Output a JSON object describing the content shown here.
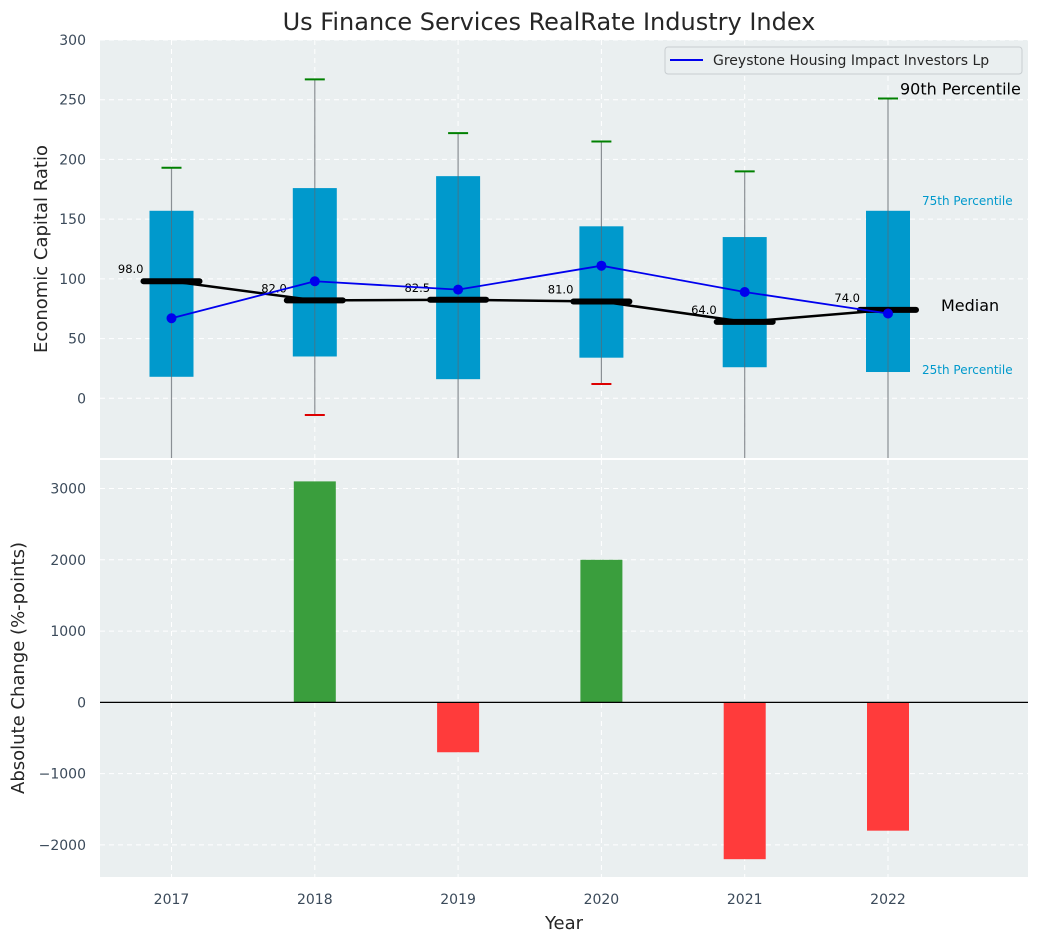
{
  "chart_data": [
    {
      "type": "box",
      "title": "Us Finance Services RealRate Industry Index",
      "ylabel": "Economic Capital Ratio",
      "ylim": [
        -50,
        300
      ],
      "yticks": [
        0,
        50,
        100,
        150,
        200,
        250,
        300
      ],
      "grid": true,
      "legend_position": "top-right",
      "categories": [
        "2017",
        "2018",
        "2019",
        "2020",
        "2021",
        "2022"
      ],
      "percentile_10": [
        -50,
        -14,
        -50,
        12,
        -50,
        -50
      ],
      "percentile_25": [
        18,
        35,
        16,
        34,
        26,
        22
      ],
      "median": [
        98.0,
        82.0,
        82.5,
        81.0,
        64.0,
        74.0
      ],
      "median_labels": [
        "98.0",
        "82.0",
        "82.5",
        "81.0",
        "64.0",
        "74.0"
      ],
      "percentile_75": [
        157,
        176,
        186,
        144,
        135,
        157
      ],
      "percentile_90": [
        193,
        267,
        222,
        215,
        190,
        251
      ],
      "series": [
        {
          "name": "Greystone Housing Impact Investors Lp",
          "values": [
            67,
            98,
            91,
            111,
            89,
            71
          ]
        }
      ],
      "annotations": {
        "p90": "90th Percentile",
        "p75": "75th Percentile",
        "median": "Median",
        "p25": "25th Percentile"
      }
    },
    {
      "type": "bar",
      "xlabel": "Year",
      "ylabel": "Absolute Change (%-points)",
      "ylim": [
        -2450,
        3400
      ],
      "yticks": [
        -2000,
        -1000,
        0,
        1000,
        2000,
        3000
      ],
      "ytick_labels": [
        "−2000",
        "−1000",
        "0",
        "1000",
        "2000",
        "3000"
      ],
      "grid": true,
      "categories": [
        "2017",
        "2018",
        "2019",
        "2020",
        "2021",
        "2022"
      ],
      "values": [
        0,
        3100,
        -700,
        2000,
        -2200,
        -1800
      ]
    }
  ],
  "colors": {
    "box": "#0099cc",
    "company_line": "#0000ee",
    "median": "#000000",
    "positive_bar": "#3a9e3d",
    "negative_bar": "#ff3b3b",
    "whisker_top": "#008000",
    "whisker_bottom": "#dd0000",
    "plot_bg": "#eaeff0"
  }
}
